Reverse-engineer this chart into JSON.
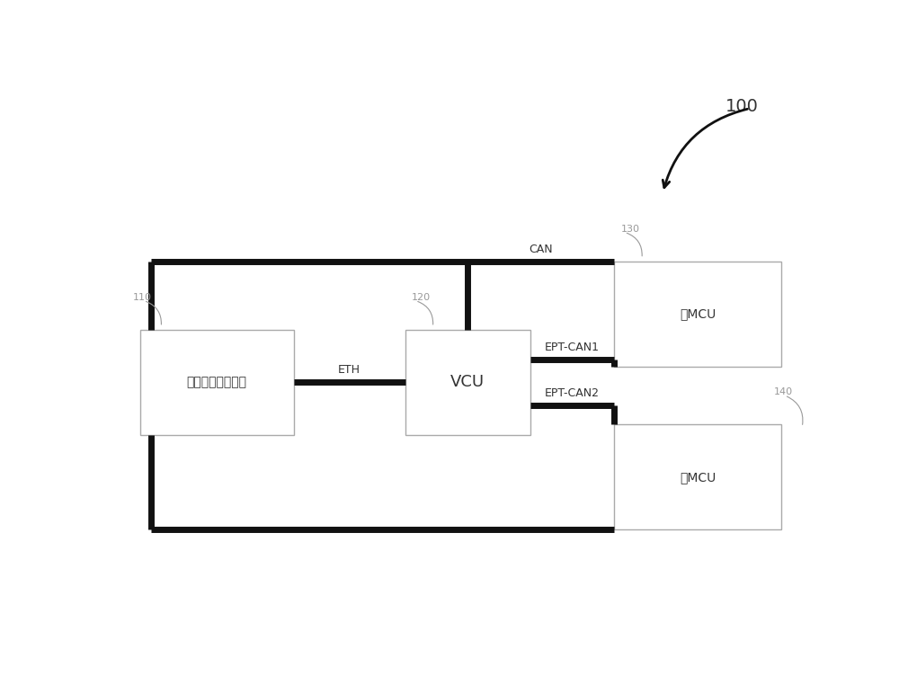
{
  "background_color": "#ffffff",
  "fig_width": 10.0,
  "fig_height": 7.61,
  "label_100": "100",
  "label_110": "110",
  "label_120": "120",
  "label_130": "130",
  "label_140": "140",
  "box_110_label": "自动驾驶域控制器",
  "box_120_label": "VCU",
  "box_130_label": "前MCU",
  "box_140_label": "后MCU",
  "conn_can": "CAN",
  "conn_eth": "ETH",
  "conn_ept1": "EPT-CAN1",
  "conn_ept2": "EPT-CAN2",
  "box_color": "#ffffff",
  "box_edge_color": "#aaaaaa",
  "thick_line_color": "#111111",
  "text_color": "#333333",
  "label_color": "#999999",
  "thick_lw": 5.0,
  "thin_lw": 1.0,
  "font_size_box_small": 10,
  "font_size_box_large": 13,
  "font_size_label": 8,
  "font_size_conn": 9,
  "font_size_100": 14
}
